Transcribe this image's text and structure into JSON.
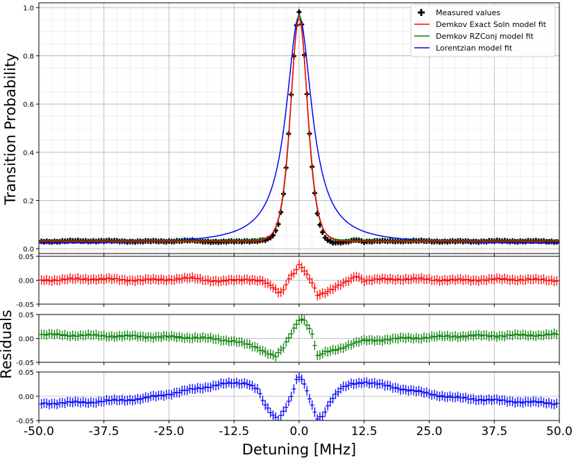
{
  "chart_data": [
    {
      "type": "line",
      "panel": "main",
      "xlabel": "Detuning [MHz]",
      "ylabel": "Transition Probability",
      "xlim": [
        -50,
        50
      ],
      "ylim": [
        -0.02,
        1.02
      ],
      "yticks": [
        "0.0",
        "0.2",
        "0.4",
        "0.6",
        "0.8",
        "1.0"
      ],
      "grid": true,
      "minor_grid": true,
      "legend_position": "top-right",
      "legend": [
        {
          "label": "Measured values",
          "color": "#000000",
          "marker": "plus"
        },
        {
          "label": "Demkov Exact Soln model fit",
          "color": "#ff0000"
        },
        {
          "label": "Demkov RZConj model fit",
          "color": "#008000"
        },
        {
          "label": "Lorentzian model fit",
          "color": "#0000ff"
        }
      ],
      "series": [
        {
          "name": "Measured values",
          "color": "#000000",
          "x_range": [
            -49.5,
            49.5
          ],
          "x_step": 0.5,
          "baseline": 0.035,
          "peak_x": 0,
          "peak_y": 0.93,
          "hwhm": 2.9,
          "profile": "Demkov fit plus red residuals"
        },
        {
          "name": "Demkov Exact Soln model fit",
          "color": "#ff0000",
          "baseline": 0.03,
          "peak_y": 0.955,
          "hwhm": 2.9,
          "profile": "sech"
        },
        {
          "name": "Demkov RZConj model fit",
          "color": "#008000",
          "baseline": 0.035,
          "peak_y": 0.97,
          "hwhm": 2.8,
          "profile": "sech"
        },
        {
          "name": "Lorentzian model fit",
          "color": "#0000ff",
          "baseline": 0.02,
          "peak_y": 0.965,
          "hwhm": 3.0,
          "profile": "lorentzian"
        }
      ]
    },
    {
      "type": "scatter",
      "panel": "residuals",
      "ylabel": "Residuals",
      "xlabel": "Detuning [MHz]",
      "xlim": [
        -50,
        50
      ],
      "xticks": [
        "-50.0",
        "-37.5",
        "-25.0",
        "-12.5",
        "0.0",
        "12.5",
        "25.0",
        "37.5",
        "50.0"
      ],
      "yticks": [
        "0.05",
        "0.00",
        "-0.05"
      ],
      "ylim": [
        -0.05,
        0.05
      ],
      "error_bar": 0.01,
      "series": [
        {
          "name": "Demkov Exact Soln model fit",
          "color": "#ff0000",
          "keypoints": [
            [
              -50,
              0
            ],
            [
              -40,
              0.003
            ],
            [
              -30,
              0
            ],
            [
              -20,
              0.004
            ],
            [
              -15,
              -0.003
            ],
            [
              -10,
              0.003
            ],
            [
              -7,
              -0.003
            ],
            [
              -5,
              -0.015
            ],
            [
              -4,
              -0.025
            ],
            [
              -3,
              -0.02
            ],
            [
              -2,
              0.005
            ],
            [
              -1,
              0.015
            ],
            [
              0,
              0.03
            ],
            [
              0.6,
              0.025
            ],
            [
              1.5,
              0.01
            ],
            [
              2.5,
              -0.005
            ],
            [
              3.5,
              -0.03
            ],
            [
              5,
              -0.025
            ],
            [
              7,
              -0.015
            ],
            [
              9,
              -0.005
            ],
            [
              11,
              0.01
            ],
            [
              12.5,
              0
            ],
            [
              20,
              0.003
            ],
            [
              30,
              0
            ],
            [
              40,
              0.002
            ],
            [
              50,
              0
            ]
          ]
        },
        {
          "name": "Demkov RZConj model fit",
          "color": "#008000",
          "keypoints": [
            [
              -50,
              0.008
            ],
            [
              -40,
              0.006
            ],
            [
              -30,
              0.004
            ],
            [
              -20,
              0.002
            ],
            [
              -12.5,
              -0.005
            ],
            [
              -8,
              -0.02
            ],
            [
              -6,
              -0.03
            ],
            [
              -4.5,
              -0.037
            ],
            [
              -3,
              -0.02
            ],
            [
              -1,
              0.02
            ],
            [
              0,
              0.04
            ],
            [
              1,
              0.04
            ],
            [
              2.5,
              0.01
            ],
            [
              3.5,
              -0.038
            ],
            [
              5,
              -0.03
            ],
            [
              8,
              -0.02
            ],
            [
              10,
              -0.012
            ],
            [
              12.5,
              -0.005
            ],
            [
              20,
              0
            ],
            [
              30,
              0.005
            ],
            [
              40,
              0.006
            ],
            [
              50,
              0.008
            ]
          ]
        },
        {
          "name": "Lorentzian model fit",
          "color": "#0000ff",
          "keypoints": [
            [
              -50,
              -0.015
            ],
            [
              -40,
              -0.012
            ],
            [
              -30,
              -0.005
            ],
            [
              -25,
              0.005
            ],
            [
              -20,
              0.015
            ],
            [
              -15,
              0.025
            ],
            [
              -10,
              0.028
            ],
            [
              -8,
              0.015
            ],
            [
              -6.5,
              -0.02
            ],
            [
              -5,
              -0.04
            ],
            [
              -4,
              -0.048
            ],
            [
              -3,
              -0.03
            ],
            [
              -1.5,
              0
            ],
            [
              -0.3,
              0.04
            ],
            [
              0.5,
              0.035
            ],
            [
              1.5,
              0.01
            ],
            [
              2.5,
              -0.02
            ],
            [
              3.5,
              -0.045
            ],
            [
              4.5,
              -0.04
            ],
            [
              6,
              -0.01
            ],
            [
              8,
              0.015
            ],
            [
              10,
              0.025
            ],
            [
              12.5,
              0.03
            ],
            [
              15,
              0.025
            ],
            [
              20,
              0.015
            ],
            [
              25,
              0.005
            ],
            [
              30,
              -0.003
            ],
            [
              40,
              -0.01
            ],
            [
              50,
              -0.015
            ]
          ]
        }
      ]
    }
  ]
}
